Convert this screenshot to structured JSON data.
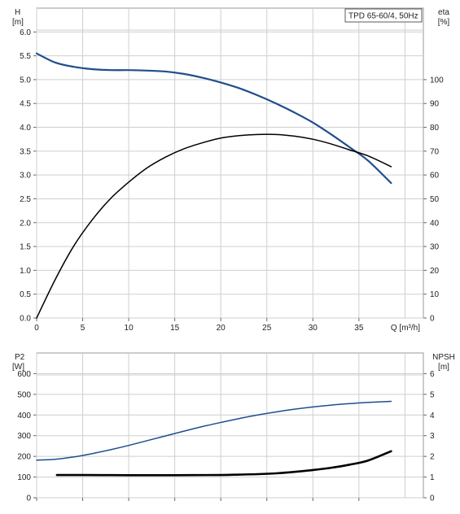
{
  "chart_data": [
    {
      "type": "line",
      "title": "",
      "legend_text": "TPD 65-60/4, 50Hz",
      "legend_position": "top-right",
      "grid": true,
      "x_axis": {
        "label": "Q [m³/h]",
        "range": [
          0,
          42
        ],
        "ticks": [
          0,
          5,
          10,
          15,
          20,
          25,
          30,
          35
        ]
      },
      "left_axis": {
        "label_line1": "H",
        "label_line2": "[m]",
        "range": [
          0,
          6.5
        ],
        "ticks": [
          0.0,
          0.5,
          1.0,
          1.5,
          2.0,
          2.5,
          3.0,
          3.5,
          4.0,
          4.5,
          5.0,
          5.5,
          6.0
        ],
        "tick_labels": [
          "0.0",
          "0.5",
          "1.0",
          "1.5",
          "2.0",
          "2.5",
          "3.0",
          "3.5",
          "4.0",
          "4.5",
          "5.0",
          "5.5",
          "6.0"
        ]
      },
      "right_axis": {
        "label_line1": "eta",
        "label_line2": "[%]",
        "range": [
          0,
          130
        ],
        "ticks": [
          0,
          10,
          20,
          30,
          40,
          50,
          60,
          70,
          80,
          90,
          100
        ]
      },
      "series": [
        {
          "key": "H",
          "axis": "left",
          "color": "#1f4e8c",
          "x": [
            0,
            2,
            4,
            6,
            8,
            10,
            12,
            14,
            16,
            18,
            20,
            22,
            24,
            26,
            28,
            30,
            32,
            34,
            36,
            38.5
          ],
          "y": [
            5.55,
            5.36,
            5.27,
            5.22,
            5.2,
            5.2,
            5.19,
            5.17,
            5.12,
            5.04,
            4.94,
            4.82,
            4.67,
            4.5,
            4.31,
            4.1,
            3.85,
            3.58,
            3.3,
            2.83
          ]
        },
        {
          "key": "eta",
          "axis": "right",
          "color": "#000000",
          "x": [
            0,
            2,
            4,
            6,
            8,
            10,
            12,
            14,
            16,
            18,
            20,
            22,
            24,
            26,
            28,
            30,
            32,
            34,
            36,
            38.5
          ],
          "y": [
            0,
            16,
            30,
            41,
            50,
            57,
            63,
            67.5,
            71,
            73.5,
            75.5,
            76.5,
            77,
            77,
            76.3,
            75,
            73,
            70.5,
            68,
            63.5
          ]
        }
      ]
    },
    {
      "type": "line",
      "title": "",
      "grid": true,
      "x_axis": {
        "range": [
          0,
          42
        ],
        "ticks": [
          0,
          5,
          10,
          15,
          20,
          25,
          30,
          35
        ]
      },
      "left_axis": {
        "label_line1": "P2",
        "label_line2": "[W]",
        "range": [
          0,
          700
        ],
        "ticks": [
          0,
          100,
          200,
          300,
          400,
          500,
          600
        ]
      },
      "right_axis": {
        "label_line1": "NPSH",
        "label_line2": "[m]",
        "range": [
          0,
          7
        ],
        "ticks": [
          0,
          1,
          2,
          3,
          4,
          5,
          6
        ]
      },
      "series": [
        {
          "key": "P2",
          "axis": "left",
          "color": "#1f4e8c",
          "x": [
            0,
            2,
            4,
            6,
            8,
            10,
            12,
            14,
            16,
            18,
            20,
            22,
            24,
            26,
            28,
            30,
            32,
            34,
            36,
            38.5
          ],
          "y": [
            182,
            186,
            197,
            213,
            232,
            253,
            276,
            299,
            322,
            344,
            364,
            383,
            400,
            415,
            428,
            439,
            448,
            455,
            461,
            466
          ]
        },
        {
          "key": "NPSH",
          "axis": "right",
          "color": "#000000",
          "x": [
            2.2,
            5,
            10,
            15,
            20,
            22,
            24,
            26,
            28,
            30,
            32,
            34,
            36,
            38.5
          ],
          "y": [
            1.1,
            1.1,
            1.09,
            1.09,
            1.1,
            1.12,
            1.14,
            1.18,
            1.25,
            1.34,
            1.45,
            1.6,
            1.8,
            2.25
          ]
        }
      ]
    }
  ]
}
